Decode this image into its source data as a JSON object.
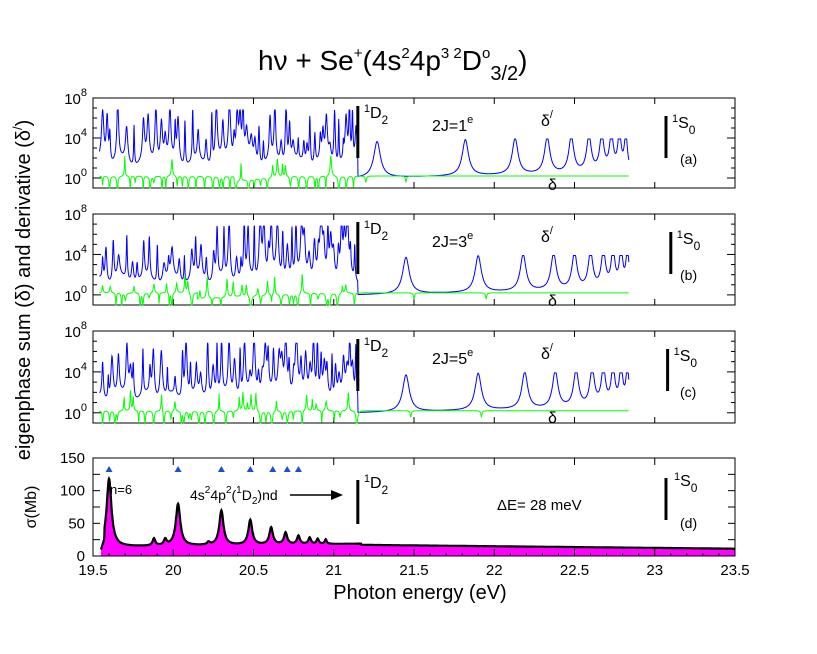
{
  "chart_data": [
    {
      "type": "line",
      "panel": "a",
      "series": [
        {
          "name": "eigenphase derivative",
          "color": "#0000ff"
        },
        {
          "name": "eigenphase sum",
          "color": "#00ff00"
        }
      ],
      "xlim": [
        19.5,
        23.5
      ],
      "ylim_log10": [
        -1,
        8
      ],
      "yticks": [
        "10",
        "10",
        "10"
      ],
      "ytick_exponents": [
        "0",
        "4",
        "8"
      ],
      "threshold_D2": 21.15,
      "threshold_S0": 23.07,
      "dense_end": 21.15,
      "resonances": [
        21.27,
        21.82,
        22.13,
        22.33,
        22.48,
        22.59,
        22.67,
        22.73,
        22.78,
        22.82
      ],
      "green_dips": [
        21.2,
        21.45
      ],
      "labels": {
        "symmetry_base": "2J=1",
        "symmetry_sup": "e",
        "delta_prime": "δ",
        "delta_prime_sup": "/",
        "delta": "δ",
        "D2_sup": "1",
        "D2": "D",
        "D2_sub": "2",
        "S0_sup": "1",
        "S0": "S",
        "S0_sub": "0",
        "panel": "(a)"
      }
    },
    {
      "type": "line",
      "panel": "b",
      "series": [
        {
          "name": "eigenphase derivative",
          "color": "#0000ff"
        },
        {
          "name": "eigenphase sum",
          "color": "#00ff00"
        }
      ],
      "xlim": [
        19.5,
        23.5
      ],
      "ylim_log10": [
        -1,
        8
      ],
      "yticks": [
        "10",
        "10",
        "10"
      ],
      "ytick_exponents": [
        "0",
        "4",
        "8"
      ],
      "threshold_D2": 21.15,
      "threshold_S0": 23.1,
      "dense_end": 21.15,
      "resonances": [
        21.45,
        21.9,
        22.18,
        22.37,
        22.5,
        22.6,
        22.68,
        22.74,
        22.79,
        22.83
      ],
      "green_dips": [
        21.5,
        21.95
      ],
      "labels": {
        "symmetry_base": "2J=3",
        "symmetry_sup": "e",
        "delta_prime": "δ",
        "delta_prime_sup": "/",
        "delta": "δ",
        "D2_sup": "1",
        "D2": "D",
        "D2_sub": "2",
        "S0_sup": "1",
        "S0": "S",
        "S0_sub": "0",
        "panel": "(b)"
      }
    },
    {
      "type": "line",
      "panel": "c",
      "series": [
        {
          "name": "eigenphase derivative",
          "color": "#0000ff"
        },
        {
          "name": "eigenphase sum",
          "color": "#00ff00"
        }
      ],
      "xlim": [
        19.5,
        23.5
      ],
      "ylim_log10": [
        -1,
        8
      ],
      "yticks": [
        "10",
        "10",
        "10"
      ],
      "ytick_exponents": [
        "0",
        "4",
        "8"
      ],
      "threshold_D2": 21.15,
      "threshold_S0": 23.08,
      "dense_end": 21.15,
      "resonances": [
        21.45,
        21.9,
        22.19,
        22.38,
        22.51,
        22.61,
        22.68,
        22.74,
        22.79,
        22.83
      ],
      "green_dips": [
        21.48,
        21.92
      ],
      "labels": {
        "symmetry_base": "2J=5",
        "symmetry_sup": "e",
        "delta_prime": "δ",
        "delta_prime_sup": "/",
        "delta": "δ",
        "D2_sup": "1",
        "D2": "D",
        "D2_sub": "2",
        "S0_sup": "1",
        "S0": "S",
        "S0_sub": "0",
        "panel": "(c)"
      }
    },
    {
      "type": "area",
      "panel": "d",
      "color": "#ff00ff",
      "xlim": [
        19.5,
        23.5
      ],
      "ylim": [
        0,
        150
      ],
      "yticks": [
        0,
        25,
        50,
        75,
        100,
        125,
        150
      ],
      "xticks": [
        "19.5",
        "20",
        "20.5",
        "21",
        "21.5",
        "22",
        "22.5",
        "23",
        "23.5"
      ],
      "peaks": [
        {
          "x": 19.6,
          "y": 118
        },
        {
          "x": 20.03,
          "y": 78
        },
        {
          "x": 20.3,
          "y": 67
        },
        {
          "x": 20.48,
          "y": 52
        },
        {
          "x": 20.61,
          "y": 40
        },
        {
          "x": 20.7,
          "y": 32
        },
        {
          "x": 20.78,
          "y": 27
        },
        {
          "x": 20.85,
          "y": 24
        },
        {
          "x": 20.9,
          "y": 22
        },
        {
          "x": 20.95,
          "y": 21
        }
      ],
      "small_peaks": [
        {
          "x": 19.88,
          "y": 27
        },
        {
          "x": 19.95,
          "y": 25
        },
        {
          "x": 20.22,
          "y": 20
        }
      ],
      "markers_x": [
        19.6,
        20.03,
        20.3,
        20.48,
        20.62,
        20.71,
        20.78
      ],
      "threshold_D2": 21.15,
      "threshold_S0": 23.07,
      "labels": {
        "ylabel": "σ(Mb)",
        "n6": "n=6",
        "series_base": "4s",
        "series_sup2a": "2",
        "series_mid": "4p",
        "series_sup2b": "2",
        "series_paren": "(",
        "series_sup1": "1",
        "series_D2": "D",
        "series_sub2": "2",
        "series_end": ")nd",
        "deltaE": "ΔE= 28 meV",
        "D2_sup": "1",
        "D2": "D",
        "D2_sub": "2",
        "S0_sup": "1",
        "S0": "S",
        "S0_sub": "0",
        "panel": "(d)"
      }
    }
  ],
  "title": {
    "prefix": "hν + Se",
    "plus": "+",
    "config_open": "(4s",
    "sup_2": "2",
    "config_mid": "4p",
    "sup_3": "3",
    "space_sup_2": " 2",
    "term": "D",
    "sup_o": "o",
    "sub_j": "3/2",
    "close": ")"
  },
  "ylabel_shared": "eigenphase sum (δ) and derivative (δ",
  "ylabel_shared_sup": "/",
  "ylabel_shared_close": ")",
  "xlabel": "Photon energy (eV)"
}
